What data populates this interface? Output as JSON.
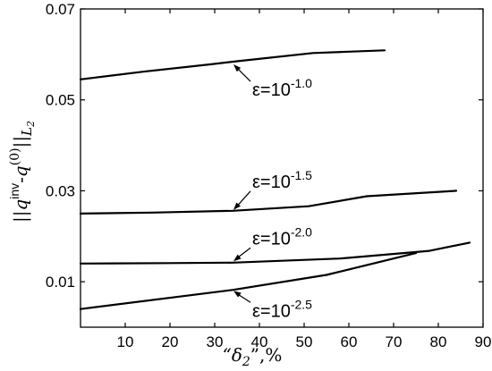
{
  "chart_data": {
    "type": "line",
    "xlabel": "“δ₂”,%",
    "xlabel_parts": {
      "open": "“",
      "symbol": "δ",
      "sub": "2",
      "close": "”,%"
    },
    "ylabel_parts": {
      "outer": "||",
      "q1": "q",
      "q1_sup": "inv",
      "dash": "-",
      "q2": "q",
      "q2_sup": "(0)",
      "norm": "||",
      "L": "L",
      "L_sub": "2"
    },
    "xlim": [
      0,
      90
    ],
    "ylim": [
      0,
      0.07
    ],
    "xticks": [
      {
        "value": 10,
        "label": "10"
      },
      {
        "value": 20,
        "label": "20"
      },
      {
        "value": 30,
        "label": "30"
      },
      {
        "value": 40,
        "label": "40"
      },
      {
        "value": 50,
        "label": "50"
      },
      {
        "value": 60,
        "label": "60"
      },
      {
        "value": 70,
        "label": "70"
      },
      {
        "value": 80,
        "label": "80"
      },
      {
        "value": 90,
        "label": "90"
      }
    ],
    "yticks": [
      {
        "value": 0.01,
        "label": "0.01"
      },
      {
        "value": 0.03,
        "label": "0.03"
      },
      {
        "value": 0.05,
        "label": "0.05"
      },
      {
        "value": 0.07,
        "label": "0.07"
      }
    ],
    "grid": false,
    "series": [
      {
        "id": "eps-1.0",
        "annotation": {
          "base": "ε=10",
          "exp": "-1.0"
        },
        "points": [
          [
            0,
            0.0545
          ],
          [
            14,
            0.0562
          ],
          [
            29,
            0.0578
          ],
          [
            35,
            0.0585
          ],
          [
            52,
            0.0603
          ],
          [
            60,
            0.0606
          ],
          [
            68,
            0.0609
          ]
        ],
        "arrow_to": [
          34,
          0.058
        ]
      },
      {
        "id": "eps-1.5",
        "annotation": {
          "base": "ε=10",
          "exp": "-1.5"
        },
        "points": [
          [
            0,
            0.025
          ],
          [
            16,
            0.0252
          ],
          [
            34,
            0.0256
          ],
          [
            51,
            0.0266
          ],
          [
            64,
            0.0288
          ],
          [
            84,
            0.03
          ]
        ],
        "arrow_to": [
          34,
          0.0256
        ]
      },
      {
        "id": "eps-2.0",
        "annotation": {
          "base": "ε=10",
          "exp": "-2.0"
        },
        "points": [
          [
            0,
            0.014
          ],
          [
            20,
            0.0141
          ],
          [
            34,
            0.0142
          ],
          [
            58,
            0.0151
          ],
          [
            78,
            0.0168
          ],
          [
            87,
            0.0186
          ]
        ],
        "arrow_to": [
          34,
          0.0143
        ]
      },
      {
        "id": "eps-2.5",
        "annotation": {
          "base": "ε=10",
          "exp": "-2.5"
        },
        "points": [
          [
            0,
            0.004
          ],
          [
            34,
            0.0082
          ],
          [
            55,
            0.0115
          ],
          [
            75,
            0.0163
          ]
        ],
        "arrow_to": [
          34,
          0.0082
        ]
      }
    ]
  }
}
